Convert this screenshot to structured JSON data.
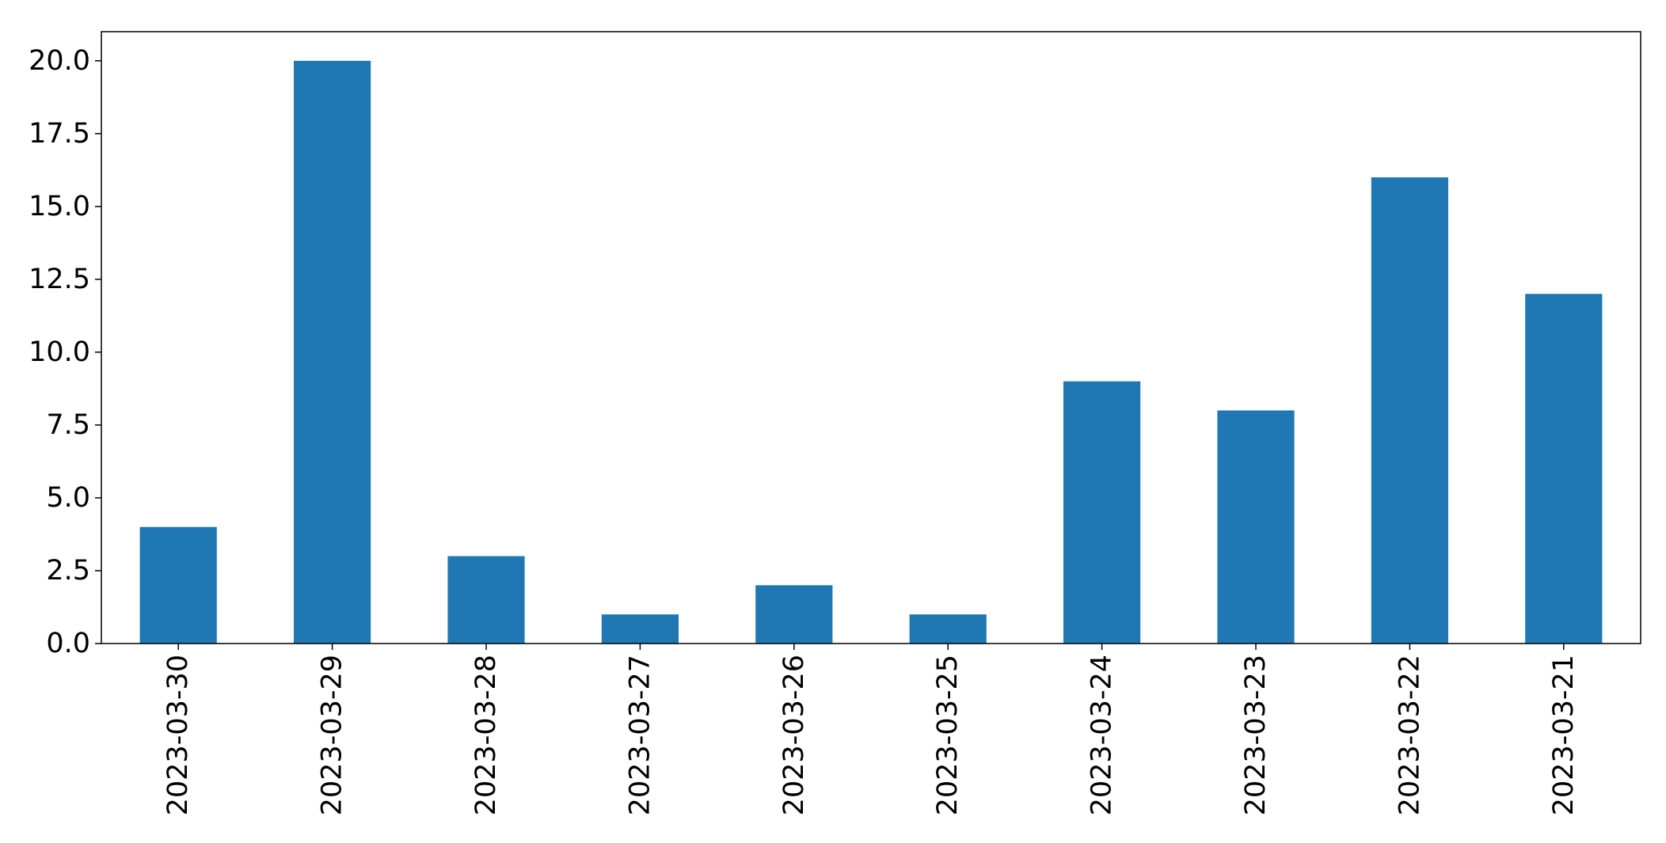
{
  "chart_data": {
    "type": "bar",
    "title": "",
    "xlabel": "",
    "ylabel": "",
    "categories": [
      "2023-03-30",
      "2023-03-29",
      "2023-03-28",
      "2023-03-27",
      "2023-03-26",
      "2023-03-25",
      "2023-03-24",
      "2023-03-23",
      "2023-03-22",
      "2023-03-21"
    ],
    "values": [
      4,
      20,
      3,
      1,
      2,
      1,
      9,
      8,
      16,
      12
    ],
    "ylim": [
      0,
      21
    ],
    "yticks": [
      "0.0",
      "2.5",
      "5.0",
      "7.5",
      "10.0",
      "12.5",
      "15.0",
      "17.5",
      "20.0"
    ],
    "grid": false,
    "legend": "none",
    "bar_color": "#1f77b4",
    "axis_color": "#000000"
  }
}
